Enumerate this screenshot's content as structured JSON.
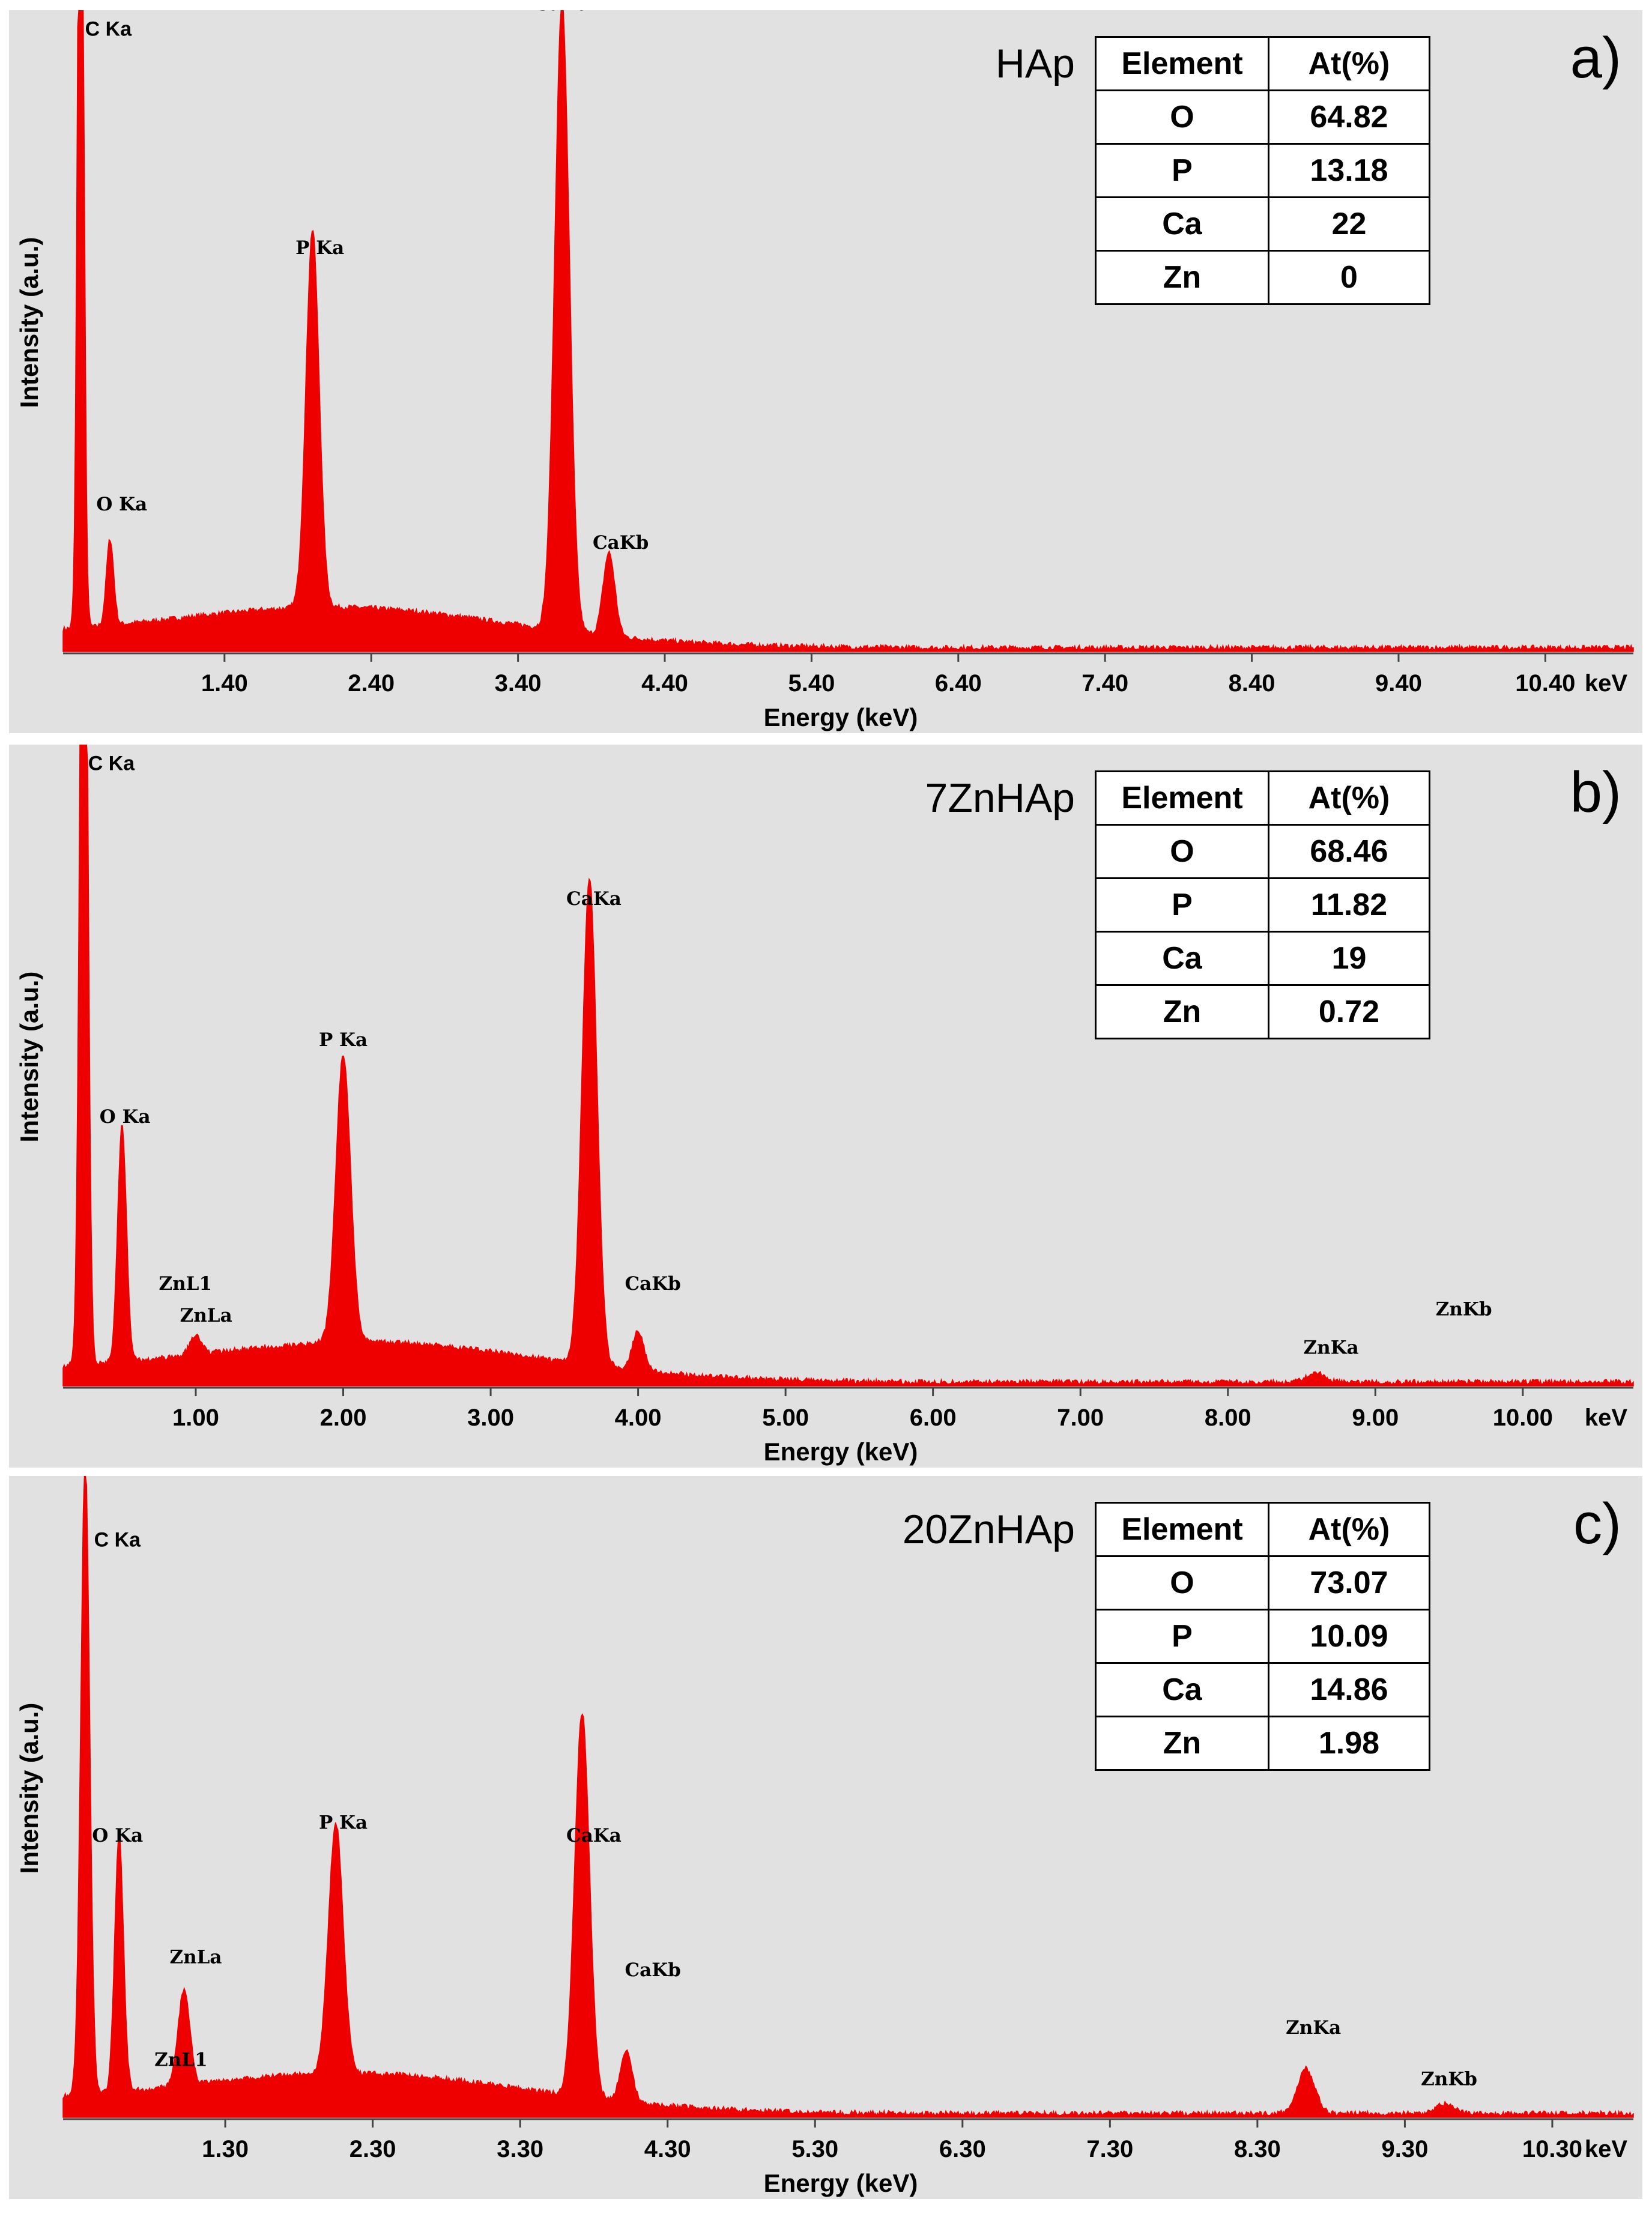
{
  "chart_data": [
    {
      "type": "line",
      "panel_label": "a)",
      "sample": "HAp",
      "xlabel": "Energy (keV)",
      "ylabel": "Intensity (a.u.)",
      "x_unit_label": "keV",
      "xlim": [
        0.3,
        11.0
      ],
      "ylim": [
        0,
        100
      ],
      "xticks": [
        1.4,
        2.4,
        3.4,
        4.4,
        5.4,
        6.4,
        7.4,
        8.4,
        9.4,
        10.4
      ],
      "xtick_labels": [
        "1.40",
        "2.40",
        "3.40",
        "4.40",
        "5.40",
        "6.40",
        "7.40",
        "8.40",
        "9.40",
        "10.40"
      ],
      "peaks": [
        {
          "label": "C Ka",
          "x": 0.42,
          "height": 160,
          "width": 0.02
        },
        {
          "label": "O Ka",
          "x": 0.62,
          "height": 13.5,
          "width": 0.025
        },
        {
          "label": "P Ka",
          "x": 2.0,
          "height": 59,
          "width": 0.045
        },
        {
          "label": "CaKa",
          "x": 3.7,
          "height": 98,
          "width": 0.05
        },
        {
          "label": "CaKb",
          "x": 4.02,
          "height": 13,
          "width": 0.04
        }
      ],
      "peak_label_pos": [
        {
          "label": "C Ka",
          "x": 0.45,
          "y": 96
        },
        {
          "label": "O Ka",
          "x": 0.7,
          "y": 22
        },
        {
          "label": "P Ka",
          "x": 2.05,
          "y": 62
        },
        {
          "label": "CaKa",
          "x": 3.7,
          "y": 100
        },
        {
          "label": "CaKb",
          "x": 4.1,
          "y": 16
        }
      ],
      "table": {
        "header": [
          "Element",
          "At(%)"
        ],
        "rows": [
          [
            "O",
            "64.82"
          ],
          [
            "P",
            "13.18"
          ],
          [
            "Ca",
            "22"
          ],
          [
            "Zn",
            "0"
          ]
        ]
      }
    },
    {
      "type": "line",
      "panel_label": "b)",
      "sample": "7ZnHAp",
      "xlabel": "Energy (keV)",
      "ylabel": "Intensity (a.u.)",
      "x_unit_label": "keV",
      "xlim": [
        0.1,
        10.75
      ],
      "ylim": [
        0,
        100
      ],
      "xticks": [
        1,
        2,
        3,
        4,
        5,
        6,
        7,
        8,
        9,
        10
      ],
      "xtick_labels": [
        "1.00",
        "2.00",
        "3.00",
        "4.00",
        "5.00",
        "6.00",
        "7.00",
        "8.00",
        "9.00",
        "10.00"
      ],
      "peaks": [
        {
          "label": "C Ka",
          "x": 0.24,
          "height": 170,
          "width": 0.025
        },
        {
          "label": "O Ka",
          "x": 0.5,
          "height": 37,
          "width": 0.03
        },
        {
          "label": "ZnLa",
          "x": 1.0,
          "height": 3,
          "width": 0.04
        },
        {
          "label": "P Ka",
          "x": 2.0,
          "height": 45,
          "width": 0.05
        },
        {
          "label": "CaKa",
          "x": 3.67,
          "height": 76,
          "width": 0.05
        },
        {
          "label": "CaKb",
          "x": 4.0,
          "height": 6,
          "width": 0.04
        },
        {
          "label": "ZnKa",
          "x": 8.6,
          "height": 1.5,
          "width": 0.06
        }
      ],
      "peak_label_pos": [
        {
          "label": "C Ka",
          "x": 0.27,
          "y": 96
        },
        {
          "label": "O Ka",
          "x": 0.52,
          "y": 41
        },
        {
          "label": "ZnL1",
          "x": 0.93,
          "y": 15
        },
        {
          "label": "ZnLa",
          "x": 1.07,
          "y": 10
        },
        {
          "label": "P Ka",
          "x": 2.0,
          "y": 53
        },
        {
          "label": "CaKa",
          "x": 3.7,
          "y": 75
        },
        {
          "label": "CaKb",
          "x": 4.1,
          "y": 15
        },
        {
          "label": "ZnKa",
          "x": 8.7,
          "y": 5
        },
        {
          "label": "ZnKb",
          "x": 9.6,
          "y": 11
        }
      ],
      "table": {
        "header": [
          "Element",
          "At(%)"
        ],
        "rows": [
          [
            "O",
            "68.46"
          ],
          [
            "P",
            "11.82"
          ],
          [
            "Ca",
            "19"
          ],
          [
            "Zn",
            "0.72"
          ]
        ]
      }
    },
    {
      "type": "line",
      "panel_label": "c)",
      "sample": "20ZnHAp",
      "xlabel": "Energy (keV)",
      "ylabel": "Intensity (a.u.)",
      "x_unit_label": "keV",
      "xlim": [
        0.2,
        10.85
      ],
      "ylim": [
        0,
        100
      ],
      "xticks": [
        1.3,
        2.3,
        3.3,
        4.3,
        5.3,
        6.3,
        7.3,
        8.3,
        9.3,
        10.3
      ],
      "xtick_labels": [
        "1.30",
        "2.30",
        "3.30",
        "4.30",
        "5.30",
        "6.30",
        "7.30",
        "8.30",
        "9.30",
        "10.30"
      ],
      "peaks": [
        {
          "label": "C Ka",
          "x": 0.35,
          "height": 100,
          "width": 0.03
        },
        {
          "label": "O Ka",
          "x": 0.58,
          "height": 40,
          "width": 0.03
        },
        {
          "label": "ZnLa",
          "x": 1.02,
          "height": 15,
          "width": 0.04
        },
        {
          "label": "P Ka",
          "x": 2.05,
          "height": 39,
          "width": 0.05
        },
        {
          "label": "CaKa",
          "x": 3.72,
          "height": 60,
          "width": 0.05
        },
        {
          "label": "CaKb",
          "x": 4.02,
          "height": 8,
          "width": 0.04
        },
        {
          "label": "ZnKa",
          "x": 8.63,
          "height": 7,
          "width": 0.06
        },
        {
          "label": "ZnKb",
          "x": 9.57,
          "height": 1.5,
          "width": 0.06
        }
      ],
      "peak_label_pos": [
        {
          "label": "C Ka",
          "x": 0.41,
          "y": 89
        },
        {
          "label": "O Ka",
          "x": 0.57,
          "y": 43
        },
        {
          "label": "ZnLa",
          "x": 1.1,
          "y": 24
        },
        {
          "label": "ZnL1",
          "x": 1.0,
          "y": 8
        },
        {
          "label": "P Ka",
          "x": 2.1,
          "y": 45
        },
        {
          "label": "CaKa",
          "x": 3.8,
          "y": 43
        },
        {
          "label": "CaKb",
          "x": 4.2,
          "y": 22
        },
        {
          "label": "ZnKa",
          "x": 8.68,
          "y": 13
        },
        {
          "label": "ZnKb",
          "x": 9.6,
          "y": 5
        }
      ],
      "table": {
        "header": [
          "Element",
          "At(%)"
        ],
        "rows": [
          [
            "O",
            "73.07"
          ],
          [
            "P",
            "10.09"
          ],
          [
            "Ca",
            "14.86"
          ],
          [
            "Zn",
            "1.98"
          ]
        ]
      }
    }
  ]
}
